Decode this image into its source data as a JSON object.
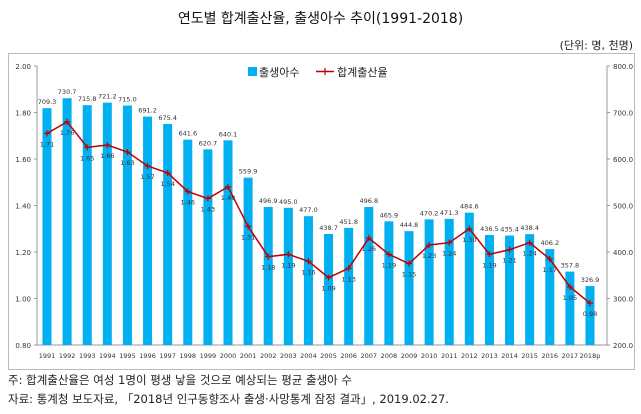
{
  "title": "연도별 합계출산율, 출생아수 추이(1991-2018)",
  "unit": "(단위: 명, 천명)",
  "note": "주: 합계출산율은 여성 1명이 평생 낳을 것으로 예상되는 평균 출생아 수",
  "source": "자료: 통계청 보도자료, 「2018년 인구동향조사 출생·사망통계 잠정 결과」, 2019.02.27.",
  "chart_data": {
    "type": "bar+line",
    "categories": [
      "1991",
      "1992",
      "1993",
      "1994",
      "1995",
      "1996",
      "1997",
      "1998",
      "1999",
      "2000",
      "2001",
      "2002",
      "2003",
      "2004",
      "2005",
      "2006",
      "2007",
      "2008",
      "2009",
      "2010",
      "2011",
      "2012",
      "2013",
      "2014",
      "2015",
      "2016",
      "2017",
      "2018p"
    ],
    "series": [
      {
        "name": "출생아수",
        "type": "bar",
        "axis": "right",
        "color": "#00b0f0",
        "values": [
          709.3,
          730.7,
          715.8,
          721.2,
          715.0,
          691.2,
          675.4,
          641.6,
          620.7,
          640.1,
          559.9,
          496.9,
          495.0,
          477.0,
          438.7,
          451.8,
          496.8,
          465.9,
          444.8,
          470.2,
          471.3,
          484.6,
          436.5,
          435.4,
          438.4,
          406.2,
          357.8,
          326.9
        ]
      },
      {
        "name": "합계출산율",
        "type": "line",
        "axis": "left",
        "color": "#c00000",
        "values": [
          1.71,
          1.76,
          1.65,
          1.66,
          1.63,
          1.57,
          1.54,
          1.46,
          1.43,
          1.48,
          1.31,
          1.18,
          1.19,
          1.16,
          1.09,
          1.13,
          1.26,
          1.19,
          1.15,
          1.23,
          1.24,
          1.3,
          1.19,
          1.21,
          1.24,
          1.17,
          1.05,
          0.98
        ]
      }
    ],
    "left_ylim": [
      0.8,
      2.0
    ],
    "left_ticks": [
      "0.80",
      "1.00",
      "1.20",
      "1.40",
      "1.60",
      "1.80",
      "2.00"
    ],
    "right_ylim": [
      200,
      800
    ],
    "right_ticks": [
      "200.0",
      "300.0",
      "400.0",
      "500.0",
      "600.0",
      "700.0",
      "800.0"
    ],
    "legend": "top-center",
    "grid": false
  }
}
